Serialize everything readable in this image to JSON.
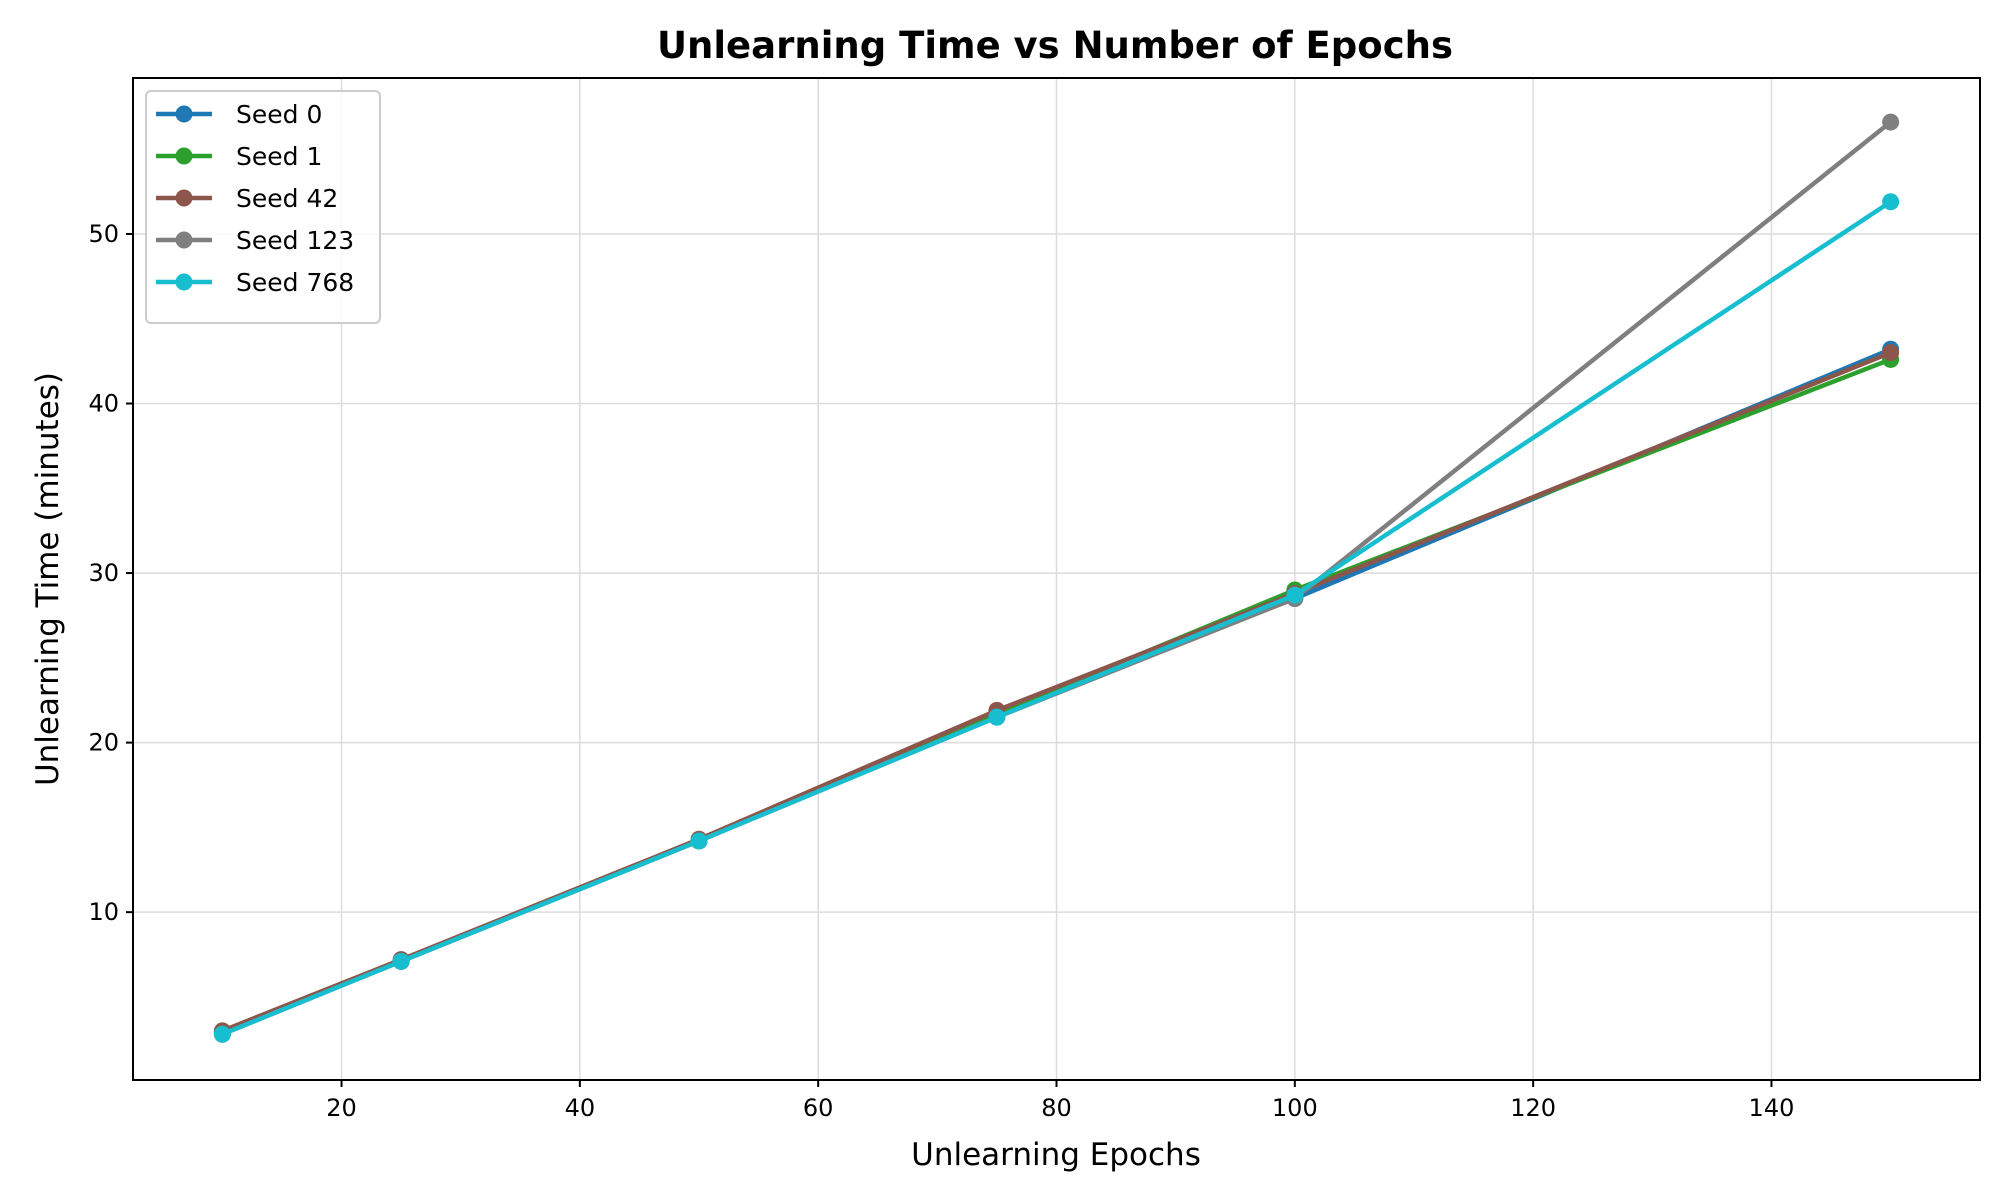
{
  "chart_data": {
    "type": "line",
    "title": "Unlearning Time vs Number of Epochs",
    "xlabel": "Unlearning Epochs",
    "ylabel": "Unlearning Time (minutes)",
    "x": [
      10,
      25,
      50,
      75,
      100,
      150
    ],
    "xlim": [
      2.5,
      157.5
    ],
    "ylim": [
      0.1,
      59.2
    ],
    "xticks": [
      20,
      40,
      60,
      80,
      100,
      120,
      140
    ],
    "yticks": [
      10,
      20,
      30,
      40,
      50
    ],
    "grid": true,
    "legend_position": "top-left",
    "series": [
      {
        "name": "Seed 0",
        "color": "#1f77b4",
        "values": [
          2.9,
          7.1,
          14.2,
          21.6,
          28.5,
          43.2
        ]
      },
      {
        "name": "Seed 1",
        "color": "#2ca02c",
        "values": [
          2.9,
          7.1,
          14.2,
          21.7,
          29.0,
          42.6
        ]
      },
      {
        "name": "Seed 42",
        "color": "#8c564b",
        "values": [
          3.0,
          7.2,
          14.3,
          21.9,
          28.8,
          43.0
        ]
      },
      {
        "name": "Seed 123",
        "color": "#7f7f7f",
        "values": [
          2.8,
          7.1,
          14.2,
          21.5,
          28.5,
          56.6
        ]
      },
      {
        "name": "Seed 768",
        "color": "#17becf",
        "values": [
          2.8,
          7.1,
          14.2,
          21.5,
          28.7,
          51.9
        ]
      }
    ]
  }
}
